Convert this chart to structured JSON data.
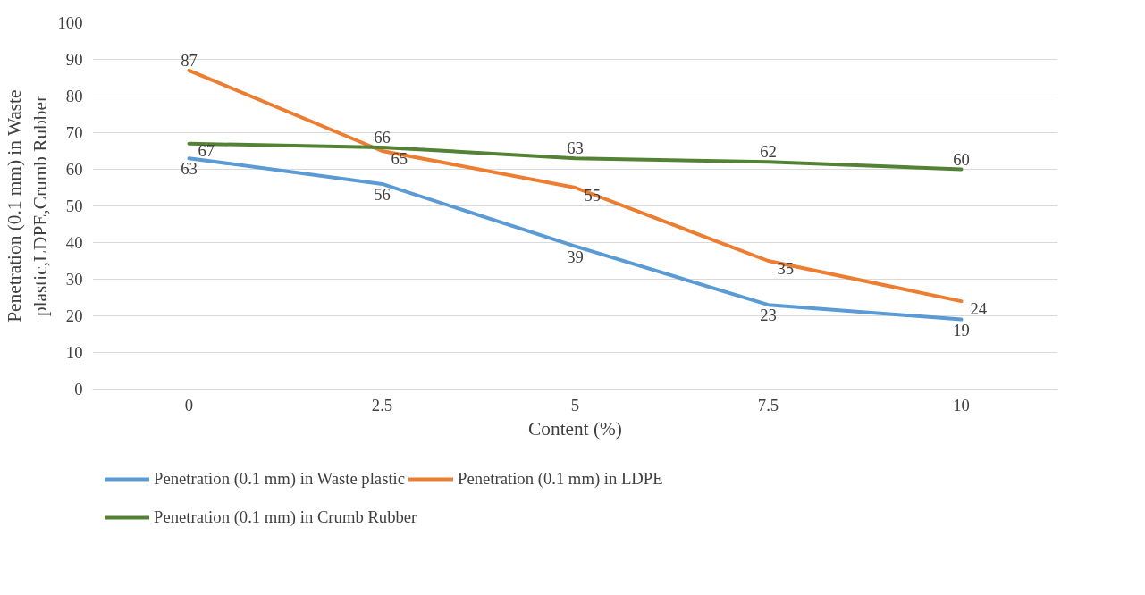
{
  "chart_data": {
    "type": "line",
    "xlabel": "Content (%)",
    "ylabel": "Penetration (0.1 mm) in Waste plastic,LDPE,Crumb Rubber",
    "categories": [
      "0",
      "2.5",
      "5",
      "7.5",
      "10"
    ],
    "series": [
      {
        "name": "Penetration (0.1 mm) in Waste plastic",
        "color": "#5b9bd5",
        "values": [
          63,
          56,
          39,
          23,
          19
        ]
      },
      {
        "name": "Penetration (0.1 mm) in LDPE",
        "color": "#ed7d31",
        "values": [
          87,
          65,
          55,
          35,
          24
        ]
      },
      {
        "name": "Penetration (0.1 mm) in Crumb Rubber",
        "color": "#548235",
        "values": [
          67,
          66,
          63,
          62,
          60
        ]
      }
    ],
    "ylim": [
      0,
      100
    ],
    "yticks": [
      0,
      10,
      20,
      30,
      40,
      50,
      60,
      70,
      80,
      90,
      100
    ],
    "grid": "y",
    "legend": "bottom",
    "data_labels": true,
    "marker": "none",
    "line_style": "solid"
  }
}
